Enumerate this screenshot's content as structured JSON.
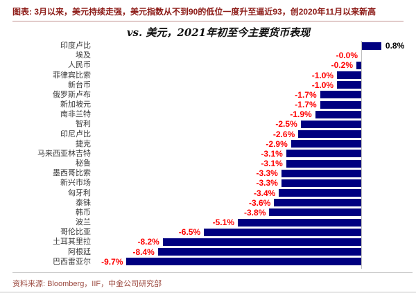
{
  "header": {
    "title": "图表: 3月以来，美元持续走强，美元指数从不到90的低位一度升至逼近93，创2020年11月以来新高"
  },
  "chart_data": {
    "type": "bar",
    "orientation": "horizontal",
    "title": "vs. 美元，2021年初至今主要货币表现",
    "categories": [
      "印度卢比",
      "埃及",
      "人民币",
      "菲律宾比索",
      "新台币",
      "俄罗斯卢布",
      "新加坡元",
      "南非兰特",
      "智利",
      "印尼卢比",
      "捷克",
      "马来西亚林吉特",
      "秘鲁",
      "墨西哥比索",
      "新兴市场",
      "匈牙利",
      "泰铢",
      "韩币",
      "波兰",
      "哥伦比亚",
      "土耳其里拉",
      "阿根廷",
      "巴西雷亚尔"
    ],
    "values": [
      0.8,
      -0.0,
      -0.2,
      -1.0,
      -1.0,
      -1.7,
      -1.7,
      -1.9,
      -2.5,
      -2.6,
      -2.9,
      -3.1,
      -3.1,
      -3.3,
      -3.3,
      -3.4,
      -3.6,
      -3.8,
      -5.1,
      -6.5,
      -8.2,
      -8.4,
      -9.7
    ],
    "value_labels": [
      "0.8%",
      "-0.0%",
      "-0.2%",
      "-1.0%",
      "-1.0%",
      "-1.7%",
      "-1.7%",
      "-1.9%",
      "-2.5%",
      "-2.6%",
      "-2.9%",
      "-3.1%",
      "-3.1%",
      "-3.3%",
      "-3.3%",
      "-3.4%",
      "-3.6%",
      "-3.8%",
      "-5.1%",
      "-6.5%",
      "-8.2%",
      "-8.4%",
      "-9.7%"
    ],
    "unit": "%",
    "xlim": [
      -10.5,
      1.5
    ],
    "grid": false,
    "legend": null,
    "bar_color": "#000080",
    "negative_label_color": "#fe0000",
    "positive_label_color": "#000000"
  },
  "footer": {
    "source": "资料来源: Bloomberg，IIF，中金公司研究部"
  }
}
